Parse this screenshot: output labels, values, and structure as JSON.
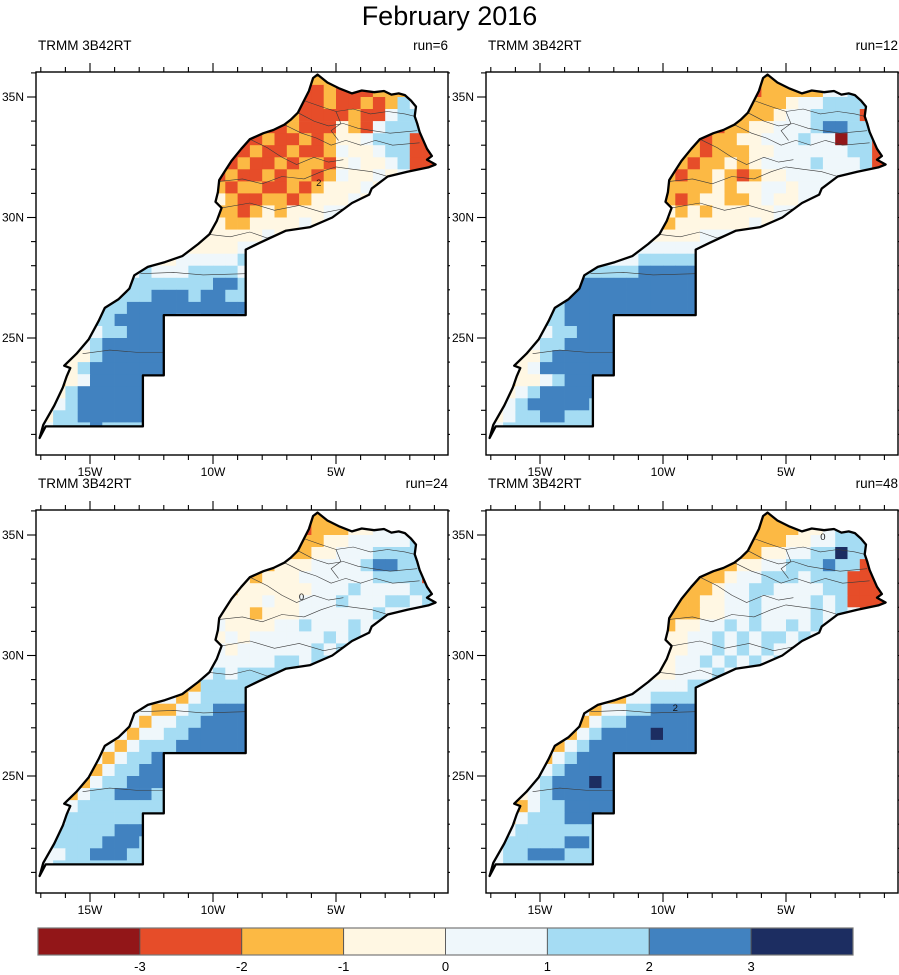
{
  "chart_data": {
    "type": "heatmap",
    "title": "February 2016",
    "panels": [
      {
        "dataset_label": "TRMM 3B42RT",
        "run_label": "run=6",
        "contour_labels": [
          {
            "text": "2",
            "lon": -5.7,
            "lat": 31.3
          }
        ],
        "grid": [
          "222222222222222222222212211222555",
          "222222222222222222222211211122245",
          "222222222222222221112111211212541",
          "222222222222222221111211112114551",
          "222222222222222211211211132145551",
          "222222222222221121121121233455511",
          "222222222222223211211211243345511",
          "222222222222232212112122134334511",
          "222222222222322121121221243343411",
          "222222222223223212211212333434311",
          "222222222232232321122123334343311",
          "222222222232323221232333443433311",
          "222222222223232322333343434333311",
          "222222222232323333343434343344411",
          "222222223322333334444444444444444",
          "222222233433444445444444444444444",
          "222221334544455554554444444444444",
          "222223345555555665555444444444444",
          "222233455566656655555544444444444",
          "222334556666666666555555444444444",
          "222235566666556665555555555544444",
          "222234556665566666555555555554444",
          "222345666666666555555555555555444",
          "222335666666666655555555555555544",
          "222356666666666665555555555555554",
          "222346666666666666555555555555555",
          "223566666666666655555555555555555",
          "234566666666666555555555555555555",
          "235566666655555555555555555555555",
          "245556555555555555555555555555555",
          "455555555555555555555555555555555"
        ]
      },
      {
        "dataset_label": "TRMM 3B42RT",
        "run_label": "run=12",
        "contour_labels": [],
        "grid": [
          "222222222222222222222222222224555",
          "222222222222222222212212222244555",
          "222222222222222221112222234455551",
          "222222222222222221122222344555511",
          "222222222222222222212233444566551",
          "222222222222222232122334445440551",
          "222222222222223222122233444444551",
          "222222222222232321223234444544451",
          "222222222222322212232123344444441",
          "222222222232231222232334434444411",
          "222222222222232212332234334434441",
          "222222222232322323233333444344441",
          "222222222232323233333343443444441",
          "222222223323333333444444444444444",
          "222222233333444444444444444444444",
          "222222344444455555444444444444444",
          "222223345555566666555544444444444",
          "222233456666666666655554444444444",
          "222334566666666666665555444444444",
          "222345566666666666665555544444444",
          "222345566666666666655555544444444",
          "222334556665666665555555555444444",
          "222345566666666655555555555554444",
          "222335666666666555555555555555444",
          "222346666666665555555555555555544",
          "222334566666655555555555555555554",
          "223456666666555555555555555555555",
          "234566666555555555555555555555555",
          "234556655555555555555555555555555",
          "245555555555555555555555555555555",
          "455555555555555555555555555555555"
        ]
      },
      {
        "dataset_label": "TRMM 3B42RT",
        "run_label": "run=24",
        "contour_labels": [
          {
            "text": "0",
            "lon": -6.4,
            "lat": 32.3
          }
        ],
        "grid": [
          "222222222222222222222222222234444",
          "222222222222222222222212223344444",
          "333333333332222221122222334444451",
          "333333333333222222212223344455551",
          "333333333333322232223334444566551",
          "333333333333233323233344444455551",
          "444444444444333323333334445444455",
          "444444444433343333343344454445545",
          "444444444443334333233344444454445",
          "444444444444333433334454445444441",
          "444444444443434343444444545445444",
          "444444444444443434444445454454544",
          "444444444444444444445545545545444",
          "444444444444444545555555455454444",
          "444444444444425555555555555544444",
          "444444444444245555555555555544444",
          "444444444422455666666555555444444",
          "444444444244556666666655554444444",
          "444444442445566666666665554444444",
          "444444424555666666666655544444444",
          "444444245566666666655555444444444",
          "444442455666665555555554444444444",
          "444424556666655555555554444444444",
          "444245566655555555555544444444444",
          "442455555556555555555444444444444",
          "424555555555555555554444444444444",
          "425555566655555555444444444444444",
          "245555666555555544444444444444444",
          "244556665555554444444444444444444",
          "445555555555544444444444444444444",
          "455555555555444444444444444444444"
        ]
      },
      {
        "dataset_label": "TRMM 3B42RT",
        "run_label": "run=48",
        "contour_labels": [
          {
            "text": "2",
            "lon": -9.5,
            "lat": 27.7
          },
          {
            "text": "0",
            "lon": -3.5,
            "lat": 34.8
          }
        ],
        "grid": [
          "222222222222222222222222222223455",
          "222222222222222222212122223345551",
          "222222222222222221111122233445551",
          "222222222222222211011223344557551",
          "222222222222221101122334455565511",
          "222222222222110112223445554555111",
          "222222222221101122234455444455111",
          "222222222212111222334454444545111",
          "222222222212111222334454444545411",
          "222222222211222233445454454545411",
          "222222222212222334454545545454411",
          "222222222212222334454545445544511",
          "222222222222233344545454554455411",
          "222222222332233344454545545544441",
          "222222223322344445555454444444444",
          "222222234422445555555555444444444",
          "222222344244556666666655544444444",
          "222223442455666666666665444444444",
          "222234424566667666666655444444444",
          "222344245666666666666555444444444",
          "223442456666666666655554444444444",
          "223424566666666555555544444444444",
          "223245666766665555555544444444444",
          "222345666666655555555544444444444",
          "223245566666655555555444444444444",
          "232455566655555555554444444444444",
          "324555555555555555544444444444444",
          "245555566555555555444444444444444",
          "245566655555555544444444444444444",
          "445555555555555444444444444444444",
          "455555555555544444444444444444444"
        ]
      }
    ],
    "axes": {
      "lon_ticks_major": [
        {
          "value": -15,
          "label": "15W"
        },
        {
          "value": -10,
          "label": "10W"
        },
        {
          "value": -5,
          "label": "5W"
        }
      ],
      "lat_ticks_major": [
        {
          "value": 35,
          "label": "35N"
        },
        {
          "value": 30,
          "label": "30N"
        },
        {
          "value": 25,
          "label": "25N"
        }
      ],
      "minor_tick_interval_deg": 1,
      "lon_range": [
        -17.195,
        -0.447
      ],
      "lat_range": [
        20.146,
        36.037
      ]
    },
    "colorbar": {
      "colors": [
        "#921618",
        "#E64D29",
        "#FCB944",
        "#FFF7E3",
        "#EFF7FB",
        "#A5DCF3",
        "#4182C0",
        "#1C2D61"
      ],
      "tick_labels": [
        "-3",
        "-2",
        "-1",
        "0",
        "1",
        "2",
        "3"
      ],
      "tick_values": [
        -3,
        -2,
        -1,
        0,
        1,
        2,
        3
      ],
      "orientation": "horizontal"
    }
  },
  "map": {
    "grid_origin": {
      "lon": -17.5,
      "lat": 36.0
    },
    "cell_size_deg": 0.5,
    "outline": [
      [
        -5.93,
        35.79
      ],
      [
        -5.75,
        35.93
      ],
      [
        -5.35,
        35.6
      ],
      [
        -4.85,
        35.35
      ],
      [
        -4.35,
        35.15
      ],
      [
        -3.95,
        35.27
      ],
      [
        -3.45,
        35.2
      ],
      [
        -3.05,
        35.25
      ],
      [
        -2.75,
        35.1
      ],
      [
        -2.45,
        35.15
      ],
      [
        -2.2,
        35.08
      ],
      [
        -1.95,
        34.85
      ],
      [
        -1.75,
        34.6
      ],
      [
        -1.8,
        34.2
      ],
      [
        -1.7,
        33.9
      ],
      [
        -1.6,
        33.55
      ],
      [
        -1.45,
        33.2
      ],
      [
        -1.3,
        32.85
      ],
      [
        -1.1,
        32.55
      ],
      [
        -1.3,
        32.4
      ],
      [
        -0.95,
        32.2
      ],
      [
        -1.25,
        32.08
      ],
      [
        -2.1,
        31.9
      ],
      [
        -2.9,
        31.7
      ],
      [
        -3.55,
        31.2
      ],
      [
        -3.65,
        30.95
      ],
      [
        -4.35,
        30.6
      ],
      [
        -5.15,
        30.0
      ],
      [
        -6.05,
        29.6
      ],
      [
        -7.05,
        29.45
      ],
      [
        -8.1,
        28.95
      ],
      [
        -8.67,
        28.67
      ],
      [
        -8.67,
        25.95
      ],
      [
        -12.0,
        25.95
      ],
      [
        -12.0,
        23.45
      ],
      [
        -12.85,
        23.45
      ],
      [
        -12.85,
        21.33
      ],
      [
        -16.8,
        21.33
      ],
      [
        -17.05,
        20.85
      ],
      [
        -16.9,
        21.4
      ],
      [
        -16.45,
        22.2
      ],
      [
        -16.1,
        22.95
      ],
      [
        -15.95,
        23.4
      ],
      [
        -15.8,
        23.75
      ],
      [
        -16.05,
        23.85
      ],
      [
        -15.55,
        24.35
      ],
      [
        -15.05,
        24.95
      ],
      [
        -14.65,
        25.7
      ],
      [
        -14.4,
        26.25
      ],
      [
        -13.85,
        26.6
      ],
      [
        -13.4,
        27.05
      ],
      [
        -13.2,
        27.6
      ],
      [
        -12.65,
        27.95
      ],
      [
        -11.95,
        28.15
      ],
      [
        -11.25,
        28.4
      ],
      [
        -10.6,
        28.9
      ],
      [
        -10.15,
        29.3
      ],
      [
        -9.85,
        29.85
      ],
      [
        -9.65,
        30.4
      ],
      [
        -9.9,
        30.65
      ],
      [
        -9.8,
        31.05
      ],
      [
        -9.75,
        31.55
      ],
      [
        -9.5,
        31.95
      ],
      [
        -9.25,
        32.35
      ],
      [
        -8.85,
        32.85
      ],
      [
        -8.5,
        33.25
      ],
      [
        -7.95,
        33.5
      ],
      [
        -7.55,
        33.63
      ],
      [
        -7.1,
        33.85
      ],
      [
        -6.85,
        34.05
      ],
      [
        -6.55,
        34.35
      ],
      [
        -6.3,
        34.85
      ],
      [
        -6.1,
        35.25
      ],
      [
        -5.93,
        35.79
      ]
    ],
    "internal_borders": [
      [
        [
          -12.95,
          27.67
        ],
        [
          -11.6,
          27.72
        ],
        [
          -10.4,
          27.62
        ],
        [
          -8.67,
          27.67
        ]
      ],
      [
        [
          -15.3,
          24.35
        ],
        [
          -14.2,
          24.5
        ],
        [
          -13.0,
          24.4
        ],
        [
          -12.0,
          24.4
        ]
      ],
      [
        [
          -9.65,
          30.4
        ],
        [
          -8.5,
          30.6
        ],
        [
          -7.5,
          30.3
        ],
        [
          -6.5,
          30.5
        ],
        [
          -5.5,
          30.2
        ],
        [
          -4.5,
          30.4
        ],
        [
          -3.65,
          30.95
        ]
      ],
      [
        [
          -9.75,
          31.5
        ],
        [
          -8.8,
          31.6
        ],
        [
          -8.0,
          31.4
        ],
        [
          -7.2,
          31.7
        ],
        [
          -6.3,
          31.6
        ],
        [
          -5.6,
          31.9
        ],
        [
          -5.0,
          32.1
        ],
        [
          -4.3,
          32.0
        ],
        [
          -3.55,
          31.9
        ],
        [
          -2.9,
          31.7
        ]
      ],
      [
        [
          -6.3,
          34.85
        ],
        [
          -5.6,
          34.6
        ],
        [
          -5.0,
          34.4
        ],
        [
          -4.3,
          34.5
        ],
        [
          -3.6,
          34.3
        ],
        [
          -2.9,
          34.4
        ],
        [
          -2.2,
          34.3
        ],
        [
          -1.8,
          34.2
        ]
      ],
      [
        [
          -7.1,
          33.85
        ],
        [
          -6.4,
          33.5
        ],
        [
          -5.8,
          33.3
        ],
        [
          -5.2,
          33.0
        ],
        [
          -4.6,
          33.2
        ],
        [
          -4.0,
          33.0
        ],
        [
          -3.4,
          33.2
        ],
        [
          -2.7,
          33.0
        ],
        [
          -1.6,
          33.1
        ]
      ],
      [
        [
          -8.5,
          33.25
        ],
        [
          -7.8,
          32.9
        ],
        [
          -7.2,
          32.5
        ],
        [
          -6.6,
          32.2
        ],
        [
          -5.9,
          32.5
        ],
        [
          -5.3,
          32.3
        ],
        [
          -4.7,
          32.4
        ]
      ],
      [
        [
          -5.0,
          34.4
        ],
        [
          -4.8,
          33.9
        ],
        [
          -5.2,
          33.6
        ],
        [
          -4.9,
          33.2
        ]
      ],
      [
        [
          -10.15,
          29.3
        ],
        [
          -9.3,
          29.2
        ],
        [
          -8.5,
          29.4
        ],
        [
          -7.8,
          29.15
        ],
        [
          -7.05,
          29.45
        ]
      ],
      [
        [
          -6.55,
          34.35
        ],
        [
          -5.9,
          34.0
        ],
        [
          -5.3,
          33.8
        ],
        [
          -4.7,
          33.9
        ],
        [
          -4.1,
          33.7
        ],
        [
          -3.5,
          33.6
        ],
        [
          -2.8,
          33.5
        ],
        [
          -1.7,
          33.6
        ]
      ]
    ]
  }
}
